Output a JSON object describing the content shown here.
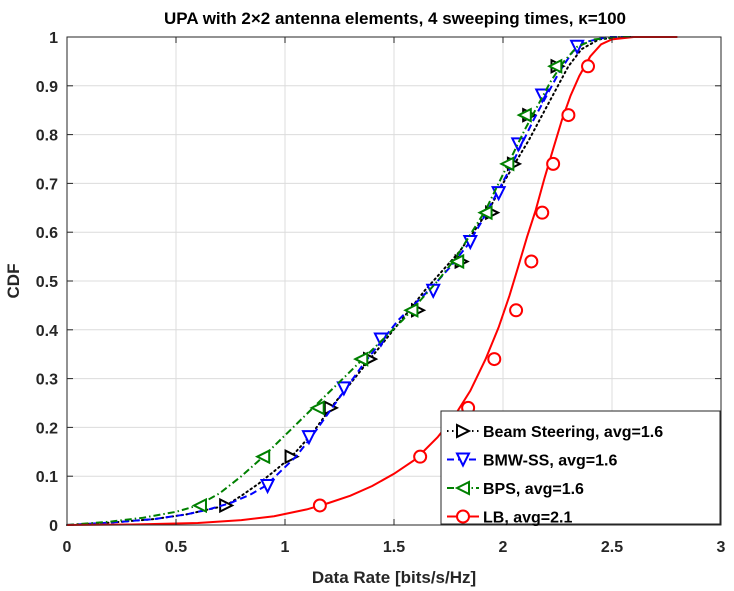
{
  "chart_data": {
    "type": "line",
    "title": "UPA with 2×2 antenna elements, 4 sweeping times, κ=100",
    "xlabel": "Data Rate [bits/s/Hz]",
    "ylabel": "CDF",
    "xlim": [
      0,
      3
    ],
    "ylim": [
      0,
      1
    ],
    "xticks": [
      0,
      0.5,
      1,
      1.5,
      2,
      2.5,
      3
    ],
    "xtick_labels": [
      "0",
      "0.5",
      "1",
      "1.5",
      "2",
      "2.5",
      "3"
    ],
    "yticks": [
      0,
      0.1,
      0.2,
      0.3,
      0.4,
      0.5,
      0.6,
      0.7,
      0.8,
      0.9,
      1
    ],
    "ytick_labels": [
      "0",
      "0.1",
      "0.2",
      "0.3",
      "0.4",
      "0.5",
      "0.6",
      "0.7",
      "0.8",
      "0.9",
      "1"
    ],
    "grid": true,
    "legend_position": "bottom-right",
    "series": [
      {
        "name": "Beam Steering, avg=1.6",
        "color": "#000000",
        "line_style": "dotted",
        "marker": "triangle-right",
        "x": [
          0,
          0.2,
          0.4,
          0.55,
          0.65,
          0.73,
          0.8,
          0.88,
          0.95,
          1.03,
          1.12,
          1.21,
          1.3,
          1.39,
          1.48,
          1.57,
          1.64,
          1.72,
          1.8,
          1.88,
          1.94,
          2.0,
          2.06,
          2.12,
          2.18,
          2.24,
          2.3,
          2.36,
          2.44,
          2.55,
          2.65
        ],
        "y": [
          0,
          0.005,
          0.012,
          0.022,
          0.032,
          0.04,
          0.06,
          0.085,
          0.11,
          0.14,
          0.185,
          0.24,
          0.29,
          0.34,
          0.39,
          0.44,
          0.48,
          0.52,
          0.56,
          0.61,
          0.65,
          0.7,
          0.745,
          0.79,
          0.84,
          0.89,
          0.94,
          0.975,
          0.995,
          1.0,
          1.0
        ],
        "marker_x": [
          0.73,
          1.03,
          1.21,
          1.39,
          1.61,
          1.81,
          1.95,
          2.05,
          2.12,
          2.25
        ],
        "marker_y": [
          0.04,
          0.14,
          0.24,
          0.34,
          0.44,
          0.54,
          0.64,
          0.74,
          0.84,
          0.94
        ]
      },
      {
        "name": "BMW-SS, avg=1.6",
        "color": "#0000ff",
        "line_style": "dashed",
        "marker": "triangle-down",
        "x": [
          0,
          0.2,
          0.4,
          0.55,
          0.65,
          0.75,
          0.84,
          0.91,
          0.98,
          1.05,
          1.12,
          1.2,
          1.28,
          1.36,
          1.44,
          1.52,
          1.6,
          1.68,
          1.76,
          1.84,
          1.9,
          1.96,
          2.02,
          2.08,
          2.14,
          2.2,
          2.26,
          2.32,
          2.38,
          2.48,
          2.6
        ],
        "y": [
          0,
          0.005,
          0.012,
          0.022,
          0.032,
          0.045,
          0.062,
          0.08,
          0.11,
          0.14,
          0.18,
          0.23,
          0.28,
          0.33,
          0.375,
          0.42,
          0.455,
          0.49,
          0.53,
          0.575,
          0.62,
          0.67,
          0.72,
          0.775,
          0.83,
          0.88,
          0.93,
          0.97,
          0.99,
          1.0,
          1.0
        ],
        "marker_x": [
          0.92,
          1.11,
          1.27,
          1.44,
          1.68,
          1.85,
          1.98,
          2.07,
          2.18,
          2.34
        ],
        "marker_y": [
          0.08,
          0.18,
          0.28,
          0.38,
          0.48,
          0.58,
          0.68,
          0.78,
          0.88,
          0.98
        ]
      },
      {
        "name": "BPS, avg=1.6",
        "color": "#008000",
        "line_style": "dashdot",
        "marker": "triangle-left",
        "x": [
          0,
          0.2,
          0.35,
          0.5,
          0.6,
          0.7,
          0.8,
          0.9,
          0.98,
          1.06,
          1.14,
          1.22,
          1.3,
          1.38,
          1.46,
          1.54,
          1.62,
          1.7,
          1.78,
          1.85,
          1.92,
          1.98,
          2.04,
          2.1,
          2.16,
          2.22,
          2.28,
          2.34,
          2.42,
          2.52,
          2.65
        ],
        "y": [
          0,
          0.007,
          0.015,
          0.027,
          0.04,
          0.065,
          0.1,
          0.14,
          0.175,
          0.21,
          0.245,
          0.28,
          0.315,
          0.35,
          0.385,
          0.42,
          0.46,
          0.5,
          0.545,
          0.595,
          0.645,
          0.7,
          0.755,
          0.81,
          0.86,
          0.91,
          0.95,
          0.98,
          0.995,
          1.0,
          1.0
        ],
        "marker_x": [
          0.61,
          0.9,
          1.15,
          1.35,
          1.58,
          1.79,
          1.92,
          2.02,
          2.1,
          2.24
        ],
        "marker_y": [
          0.04,
          0.14,
          0.24,
          0.34,
          0.44,
          0.54,
          0.64,
          0.74,
          0.84,
          0.94
        ]
      },
      {
        "name": "LB, avg=2.1",
        "color": "#ff0000",
        "line_style": "solid",
        "marker": "circle",
        "x": [
          0,
          0.3,
          0.6,
          0.8,
          0.95,
          1.1,
          1.2,
          1.3,
          1.4,
          1.5,
          1.6,
          1.7,
          1.78,
          1.85,
          1.92,
          1.98,
          2.03,
          2.07,
          2.11,
          2.15,
          2.19,
          2.23,
          2.27,
          2.31,
          2.35,
          2.4,
          2.45,
          2.5,
          2.6,
          2.7,
          2.8
        ],
        "y": [
          0,
          0.001,
          0.004,
          0.01,
          0.018,
          0.032,
          0.045,
          0.06,
          0.08,
          0.105,
          0.135,
          0.18,
          0.225,
          0.275,
          0.34,
          0.405,
          0.47,
          0.53,
          0.59,
          0.645,
          0.71,
          0.77,
          0.83,
          0.88,
          0.92,
          0.96,
          0.985,
          0.995,
          1.0,
          1.0,
          1.0
        ],
        "marker_x": [
          1.16,
          1.62,
          1.84,
          1.96,
          2.06,
          2.13,
          2.18,
          2.23,
          2.3,
          2.39
        ],
        "marker_y": [
          0.04,
          0.14,
          0.24,
          0.34,
          0.44,
          0.54,
          0.64,
          0.74,
          0.84,
          0.94
        ]
      }
    ]
  }
}
